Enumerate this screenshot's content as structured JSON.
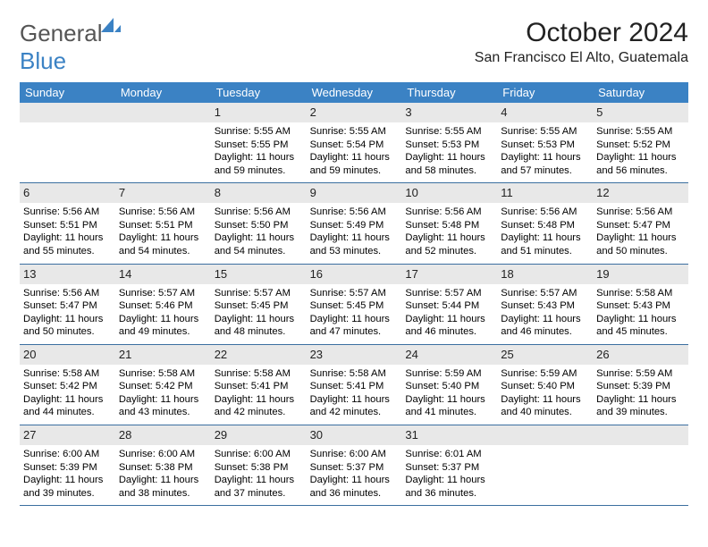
{
  "brand": {
    "general": "General",
    "blue": "Blue"
  },
  "title": "October 2024",
  "location": "San Francisco El Alto, Guatemala",
  "day_headers": [
    "Sunday",
    "Monday",
    "Tuesday",
    "Wednesday",
    "Thursday",
    "Friday",
    "Saturday"
  ],
  "colors": {
    "header_bg": "#3b82c4",
    "header_fg": "#ffffff",
    "daynum_bg": "#e8e8e8",
    "week_border": "#3b6fa0",
    "text": "#000000"
  },
  "weeks": [
    [
      {
        "blank": true
      },
      {
        "blank": true
      },
      {
        "day": "1",
        "sunrise": "Sunrise: 5:55 AM",
        "sunset": "Sunset: 5:55 PM",
        "daylight1": "Daylight: 11 hours",
        "daylight2": "and 59 minutes."
      },
      {
        "day": "2",
        "sunrise": "Sunrise: 5:55 AM",
        "sunset": "Sunset: 5:54 PM",
        "daylight1": "Daylight: 11 hours",
        "daylight2": "and 59 minutes."
      },
      {
        "day": "3",
        "sunrise": "Sunrise: 5:55 AM",
        "sunset": "Sunset: 5:53 PM",
        "daylight1": "Daylight: 11 hours",
        "daylight2": "and 58 minutes."
      },
      {
        "day": "4",
        "sunrise": "Sunrise: 5:55 AM",
        "sunset": "Sunset: 5:53 PM",
        "daylight1": "Daylight: 11 hours",
        "daylight2": "and 57 minutes."
      },
      {
        "day": "5",
        "sunrise": "Sunrise: 5:55 AM",
        "sunset": "Sunset: 5:52 PM",
        "daylight1": "Daylight: 11 hours",
        "daylight2": "and 56 minutes."
      }
    ],
    [
      {
        "day": "6",
        "sunrise": "Sunrise: 5:56 AM",
        "sunset": "Sunset: 5:51 PM",
        "daylight1": "Daylight: 11 hours",
        "daylight2": "and 55 minutes."
      },
      {
        "day": "7",
        "sunrise": "Sunrise: 5:56 AM",
        "sunset": "Sunset: 5:51 PM",
        "daylight1": "Daylight: 11 hours",
        "daylight2": "and 54 minutes."
      },
      {
        "day": "8",
        "sunrise": "Sunrise: 5:56 AM",
        "sunset": "Sunset: 5:50 PM",
        "daylight1": "Daylight: 11 hours",
        "daylight2": "and 54 minutes."
      },
      {
        "day": "9",
        "sunrise": "Sunrise: 5:56 AM",
        "sunset": "Sunset: 5:49 PM",
        "daylight1": "Daylight: 11 hours",
        "daylight2": "and 53 minutes."
      },
      {
        "day": "10",
        "sunrise": "Sunrise: 5:56 AM",
        "sunset": "Sunset: 5:48 PM",
        "daylight1": "Daylight: 11 hours",
        "daylight2": "and 52 minutes."
      },
      {
        "day": "11",
        "sunrise": "Sunrise: 5:56 AM",
        "sunset": "Sunset: 5:48 PM",
        "daylight1": "Daylight: 11 hours",
        "daylight2": "and 51 minutes."
      },
      {
        "day": "12",
        "sunrise": "Sunrise: 5:56 AM",
        "sunset": "Sunset: 5:47 PM",
        "daylight1": "Daylight: 11 hours",
        "daylight2": "and 50 minutes."
      }
    ],
    [
      {
        "day": "13",
        "sunrise": "Sunrise: 5:56 AM",
        "sunset": "Sunset: 5:47 PM",
        "daylight1": "Daylight: 11 hours",
        "daylight2": "and 50 minutes."
      },
      {
        "day": "14",
        "sunrise": "Sunrise: 5:57 AM",
        "sunset": "Sunset: 5:46 PM",
        "daylight1": "Daylight: 11 hours",
        "daylight2": "and 49 minutes."
      },
      {
        "day": "15",
        "sunrise": "Sunrise: 5:57 AM",
        "sunset": "Sunset: 5:45 PM",
        "daylight1": "Daylight: 11 hours",
        "daylight2": "and 48 minutes."
      },
      {
        "day": "16",
        "sunrise": "Sunrise: 5:57 AM",
        "sunset": "Sunset: 5:45 PM",
        "daylight1": "Daylight: 11 hours",
        "daylight2": "and 47 minutes."
      },
      {
        "day": "17",
        "sunrise": "Sunrise: 5:57 AM",
        "sunset": "Sunset: 5:44 PM",
        "daylight1": "Daylight: 11 hours",
        "daylight2": "and 46 minutes."
      },
      {
        "day": "18",
        "sunrise": "Sunrise: 5:57 AM",
        "sunset": "Sunset: 5:43 PM",
        "daylight1": "Daylight: 11 hours",
        "daylight2": "and 46 minutes."
      },
      {
        "day": "19",
        "sunrise": "Sunrise: 5:58 AM",
        "sunset": "Sunset: 5:43 PM",
        "daylight1": "Daylight: 11 hours",
        "daylight2": "and 45 minutes."
      }
    ],
    [
      {
        "day": "20",
        "sunrise": "Sunrise: 5:58 AM",
        "sunset": "Sunset: 5:42 PM",
        "daylight1": "Daylight: 11 hours",
        "daylight2": "and 44 minutes."
      },
      {
        "day": "21",
        "sunrise": "Sunrise: 5:58 AM",
        "sunset": "Sunset: 5:42 PM",
        "daylight1": "Daylight: 11 hours",
        "daylight2": "and 43 minutes."
      },
      {
        "day": "22",
        "sunrise": "Sunrise: 5:58 AM",
        "sunset": "Sunset: 5:41 PM",
        "daylight1": "Daylight: 11 hours",
        "daylight2": "and 42 minutes."
      },
      {
        "day": "23",
        "sunrise": "Sunrise: 5:58 AM",
        "sunset": "Sunset: 5:41 PM",
        "daylight1": "Daylight: 11 hours",
        "daylight2": "and 42 minutes."
      },
      {
        "day": "24",
        "sunrise": "Sunrise: 5:59 AM",
        "sunset": "Sunset: 5:40 PM",
        "daylight1": "Daylight: 11 hours",
        "daylight2": "and 41 minutes."
      },
      {
        "day": "25",
        "sunrise": "Sunrise: 5:59 AM",
        "sunset": "Sunset: 5:40 PM",
        "daylight1": "Daylight: 11 hours",
        "daylight2": "and 40 minutes."
      },
      {
        "day": "26",
        "sunrise": "Sunrise: 5:59 AM",
        "sunset": "Sunset: 5:39 PM",
        "daylight1": "Daylight: 11 hours",
        "daylight2": "and 39 minutes."
      }
    ],
    [
      {
        "day": "27",
        "sunrise": "Sunrise: 6:00 AM",
        "sunset": "Sunset: 5:39 PM",
        "daylight1": "Daylight: 11 hours",
        "daylight2": "and 39 minutes."
      },
      {
        "day": "28",
        "sunrise": "Sunrise: 6:00 AM",
        "sunset": "Sunset: 5:38 PM",
        "daylight1": "Daylight: 11 hours",
        "daylight2": "and 38 minutes."
      },
      {
        "day": "29",
        "sunrise": "Sunrise: 6:00 AM",
        "sunset": "Sunset: 5:38 PM",
        "daylight1": "Daylight: 11 hours",
        "daylight2": "and 37 minutes."
      },
      {
        "day": "30",
        "sunrise": "Sunrise: 6:00 AM",
        "sunset": "Sunset: 5:37 PM",
        "daylight1": "Daylight: 11 hours",
        "daylight2": "and 36 minutes."
      },
      {
        "day": "31",
        "sunrise": "Sunrise: 6:01 AM",
        "sunset": "Sunset: 5:37 PM",
        "daylight1": "Daylight: 11 hours",
        "daylight2": "and 36 minutes."
      },
      {
        "blank": true
      },
      {
        "blank": true
      }
    ]
  ]
}
